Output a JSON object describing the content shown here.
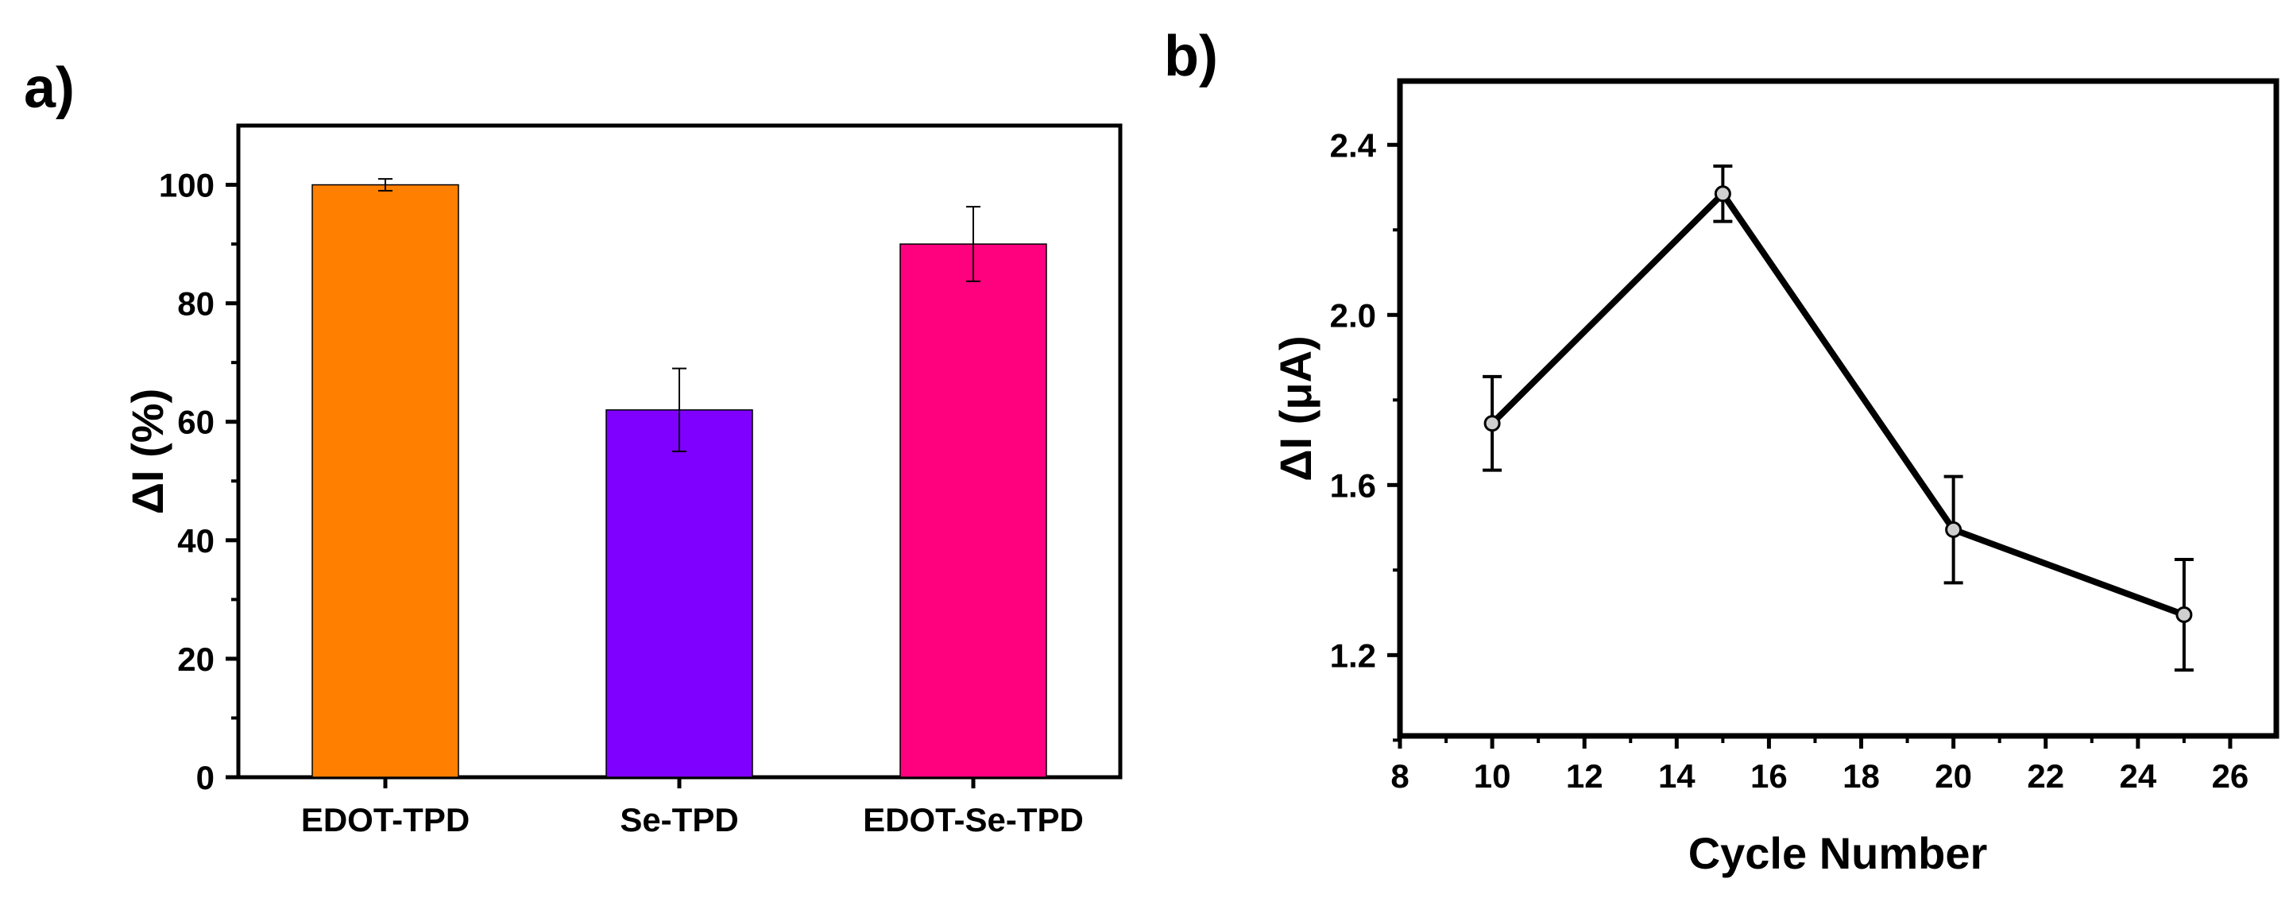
{
  "chart_data": [
    {
      "panel_label": "a)",
      "type": "bar",
      "categories": [
        "EDOT-TPD",
        "Se-TPD",
        "EDOT-Se-TPD"
      ],
      "values": [
        100,
        62,
        90
      ],
      "errors": [
        1,
        7,
        6.3
      ],
      "colors": [
        "#FF7F00",
        "#7F00FF",
        "#FF007F"
      ],
      "xlabel": "",
      "ylabel": "ΔI (%)",
      "ylim": [
        0,
        110
      ],
      "yticks": [
        0,
        20,
        40,
        60,
        80,
        100
      ],
      "ytick_labels": [
        "0",
        "20",
        "40",
        "60",
        "80",
        "100"
      ],
      "grid": false
    },
    {
      "panel_label": "b)",
      "type": "line",
      "x": [
        10,
        15,
        20,
        25
      ],
      "y": [
        1.745,
        2.285,
        1.495,
        1.295
      ],
      "errors": [
        0.11,
        0.065,
        0.125,
        0.13
      ],
      "color": "#000000",
      "xlabel": "Cycle Number",
      "ylabel": "ΔI (μA)",
      "xlim": [
        8,
        27
      ],
      "ylim": [
        1.01,
        2.55
      ],
      "xticks": [
        8,
        10,
        12,
        14,
        16,
        18,
        20,
        22,
        24,
        26
      ],
      "xtick_labels": [
        "8",
        "10",
        "12",
        "14",
        "16",
        "18",
        "20",
        "22",
        "24",
        "26"
      ],
      "yticks": [
        1.2,
        1.6,
        2.0,
        2.4
      ],
      "ytick_labels": [
        "1.2",
        "1.6",
        "2.0",
        "2.4"
      ],
      "grid": false
    }
  ]
}
